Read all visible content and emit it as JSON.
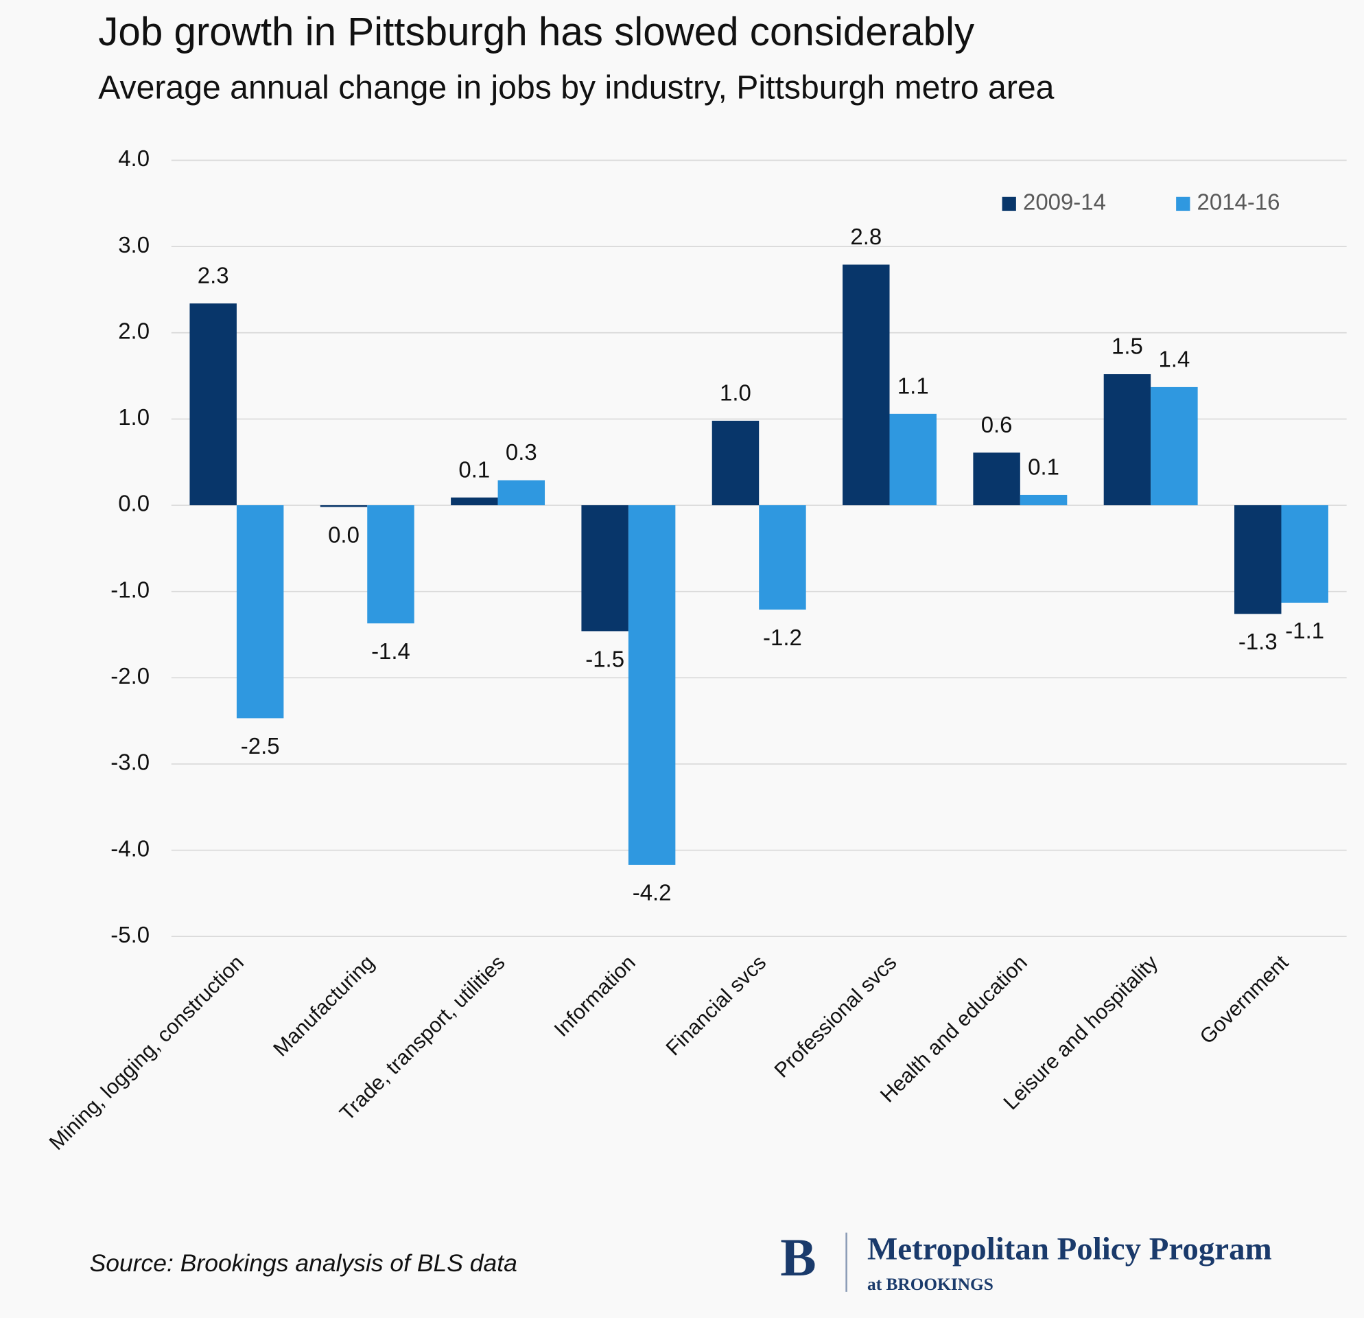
{
  "chart_data": {
    "type": "bar",
    "title": "Job growth in Pittsburgh has slowed considerably",
    "subtitle": "Average annual change in jobs by industry, Pittsburgh metro area",
    "categories": [
      "Mining, logging, construction",
      "Manufacturing",
      "Trade, transport, utilities",
      "Information",
      "Financial svcs",
      "Professional svcs",
      "Health and education",
      "Leisure and hospitality",
      "Government"
    ],
    "series": [
      {
        "name": "2009-14",
        "color": "#08366a",
        "values": [
          2.34,
          -0.02,
          0.09,
          -1.46,
          0.98,
          2.79,
          0.61,
          1.52,
          -1.26
        ],
        "value_labels": [
          "2.3",
          "0.0",
          "0.1",
          "-1.5",
          "1.0",
          "2.8",
          "0.6",
          "1.5",
          "-1.3"
        ]
      },
      {
        "name": "2014-16",
        "color": "#2f98e0",
        "values": [
          -2.47,
          -1.37,
          0.29,
          -4.17,
          -1.21,
          1.06,
          0.12,
          1.37,
          -1.13
        ],
        "value_labels": [
          "-2.5",
          "-1.4",
          "0.3",
          "-4.2",
          "-1.2",
          "1.1",
          "0.1",
          "1.4",
          "-1.1"
        ]
      }
    ],
    "ylim": [
      -5,
      4
    ],
    "yticks": [
      {
        "value": 4,
        "label": "4.0"
      },
      {
        "value": 3,
        "label": "3.0"
      },
      {
        "value": 2,
        "label": "2.0"
      },
      {
        "value": 1,
        "label": "1.0"
      },
      {
        "value": 0,
        "label": "0.0"
      },
      {
        "value": -1,
        "label": "-1.0"
      },
      {
        "value": -2,
        "label": "-2.0"
      },
      {
        "value": -3,
        "label": "-3.0"
      },
      {
        "value": -4,
        "label": "-4.0"
      },
      {
        "value": -5,
        "label": "-5.0"
      }
    ],
    "grid": true,
    "legend": "top-right",
    "source": "Source: Brookings analysis of BLS data",
    "logo": {
      "mark": "B",
      "name": "Metropolitan Policy Program",
      "sub": "at BROOKINGS"
    }
  }
}
